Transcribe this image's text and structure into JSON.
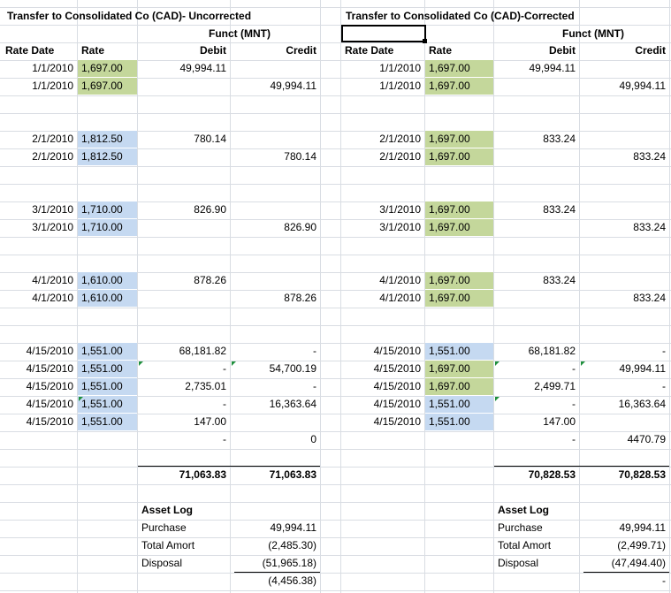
{
  "left_title": "Transfer to Consolidated Co (CAD)- Uncorrected",
  "right_title": "Transfer to Consolidated Co (CAD)-Corrected",
  "funct_label": "Funct (MNT)",
  "headers": {
    "rate_date": "Rate Date",
    "rate": "Rate",
    "debit": "Debit",
    "credit": "Credit"
  },
  "left_rows": [
    {
      "date": "1/1/2010",
      "rate": "1,697.00",
      "debit": "49,994.11",
      "credit": ""
    },
    {
      "date": "1/1/2010",
      "rate": "1,697.00",
      "debit": "",
      "credit": "49,994.11"
    },
    {
      "date": "2/1/2010",
      "rate": "1,812.50",
      "debit": "780.14",
      "credit": ""
    },
    {
      "date": "2/1/2010",
      "rate": "1,812.50",
      "debit": "",
      "credit": "780.14"
    },
    {
      "date": "3/1/2010",
      "rate": "1,710.00",
      "debit": "826.90",
      "credit": ""
    },
    {
      "date": "3/1/2010",
      "rate": "1,710.00",
      "debit": "",
      "credit": "826.90"
    },
    {
      "date": "4/1/2010",
      "rate": "1,610.00",
      "debit": "878.26",
      "credit": ""
    },
    {
      "date": "4/1/2010",
      "rate": "1,610.00",
      "debit": "",
      "credit": "878.26"
    },
    {
      "date": "4/15/2010",
      "rate": "1,551.00",
      "debit": "68,181.82",
      "credit": "-"
    },
    {
      "date": "4/15/2010",
      "rate": "1,551.00",
      "debit": "-",
      "credit": "54,700.19"
    },
    {
      "date": "4/15/2010",
      "rate": "1,551.00",
      "debit": "2,735.01",
      "credit": "-"
    },
    {
      "date": "4/15/2010",
      "rate": "1,551.00",
      "debit": "-",
      "credit": "16,363.64"
    },
    {
      "date": "4/15/2010",
      "rate": "1,551.00",
      "debit": "147.00",
      "credit": ""
    },
    {
      "date": "",
      "rate": "",
      "debit": "-",
      "credit": "0"
    }
  ],
  "right_rows": [
    {
      "date": "1/1/2010",
      "rate": "1,697.00",
      "debit": "49,994.11",
      "credit": ""
    },
    {
      "date": "1/1/2010",
      "rate": "1,697.00",
      "debit": "",
      "credit": "49,994.11"
    },
    {
      "date": "2/1/2010",
      "rate": "1,697.00",
      "debit": "833.24",
      "credit": ""
    },
    {
      "date": "2/1/2010",
      "rate": "1,697.00",
      "debit": "",
      "credit": "833.24"
    },
    {
      "date": "3/1/2010",
      "rate": "1,697.00",
      "debit": "833.24",
      "credit": ""
    },
    {
      "date": "3/1/2010",
      "rate": "1,697.00",
      "debit": "",
      "credit": "833.24"
    },
    {
      "date": "4/1/2010",
      "rate": "1,697.00",
      "debit": "833.24",
      "credit": ""
    },
    {
      "date": "4/1/2010",
      "rate": "1,697.00",
      "debit": "",
      "credit": "833.24"
    },
    {
      "date": "4/15/2010",
      "rate": "1,551.00",
      "debit": "68,181.82",
      "credit": "-"
    },
    {
      "date": "4/15/2010",
      "rate": "1,697.00",
      "debit": "-",
      "credit": "49,994.11"
    },
    {
      "date": "4/15/2010",
      "rate": "1,697.00",
      "debit": "2,499.71",
      "credit": "-"
    },
    {
      "date": "4/15/2010",
      "rate": "1,551.00",
      "debit": "-",
      "credit": "16,363.64"
    },
    {
      "date": "4/15/2010",
      "rate": "1,551.00",
      "debit": "147.00",
      "credit": ""
    },
    {
      "date": "",
      "rate": "",
      "debit": "-",
      "credit": "4470.79"
    }
  ],
  "left_totals": {
    "debit": "71,063.83",
    "credit": "71,063.83"
  },
  "right_totals": {
    "debit": "70,828.53",
    "credit": "70,828.53"
  },
  "left_asset_log": {
    "title": "Asset Log",
    "purchase_label": "Purchase",
    "purchase": "49,994.11",
    "amort_label": "Total Amort",
    "amort": "(2,485.30)",
    "disposal_label": "Disposal",
    "disposal": "(51,965.18)",
    "result": "(4,456.38)"
  },
  "right_asset_log": {
    "title": "Asset Log",
    "purchase_label": "Purchase",
    "purchase": "49,994.11",
    "amort_label": "Total Amort",
    "amort": "(2,499.71)",
    "disposal_label": "Disposal",
    "disposal": "(47,494.40)",
    "result": "-"
  },
  "colors": {
    "green_rate": "#c4d79b",
    "blue_rate": "#c5d9f1",
    "gridline": "#d9dde3",
    "comment_marker": "#1e8f3c"
  }
}
